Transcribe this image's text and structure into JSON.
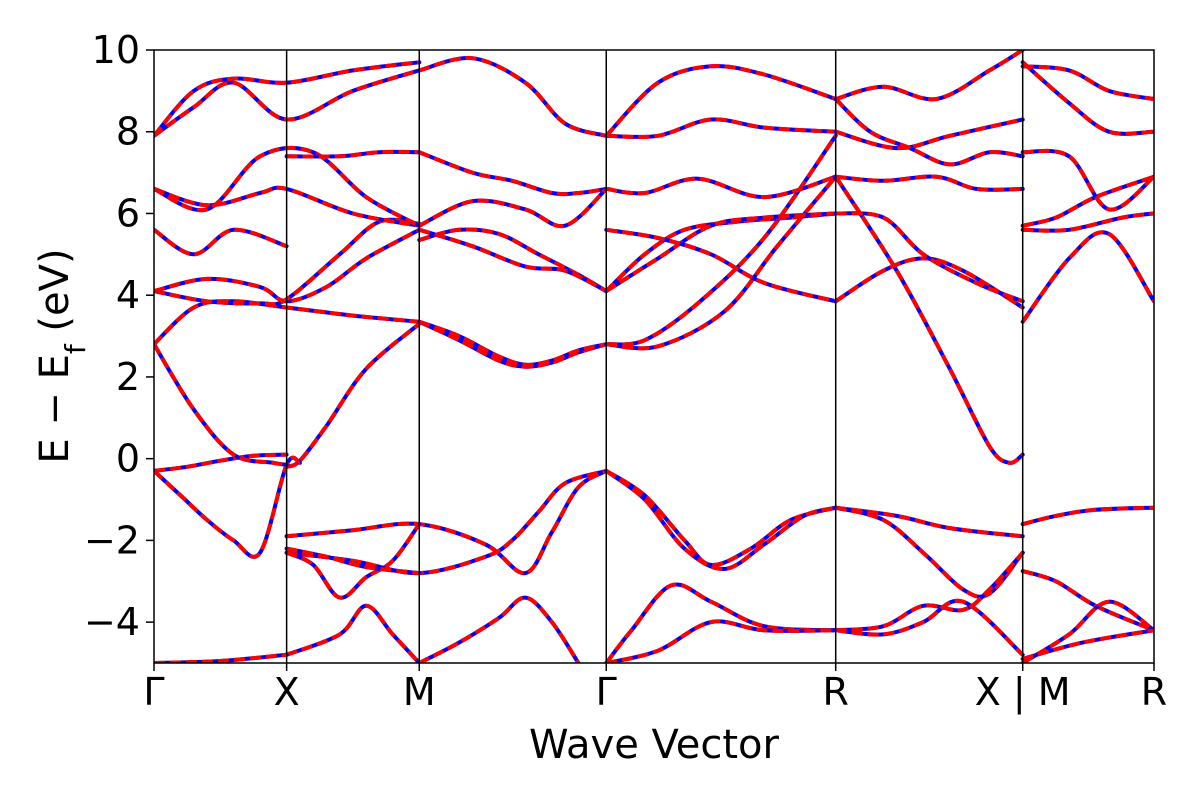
{
  "chart_data": {
    "type": "line",
    "title": "",
    "xlabel": "Wave Vector",
    "ylabel": "E − E_f (eV)",
    "ylabel_parts": {
      "main": "E − E",
      "sub": "f",
      "unit": " (eV)"
    },
    "ylim": [
      -5,
      10
    ],
    "yticks": [
      -4,
      -2,
      0,
      2,
      4,
      6,
      8,
      10
    ],
    "ytick_labels": [
      "−4",
      "−2",
      "0",
      "2",
      "4",
      "6",
      "8",
      "10"
    ],
    "xlim": [
      0,
      7.54
    ],
    "kpoints": [
      {
        "label": "Γ",
        "x": 0.0
      },
      {
        "label": "X",
        "x": 1.0
      },
      {
        "label": "M",
        "x": 2.0
      },
      {
        "label": "Γ",
        "x": 3.41
      },
      {
        "label": "R",
        "x": 5.14
      },
      {
        "label": "X | M",
        "x": 6.55
      },
      {
        "label": "R",
        "x": 7.54
      }
    ],
    "grid": false,
    "legend": "none",
    "colors": {
      "primary": "#ff0000",
      "overlay": "#0000ff",
      "vlines": "#000000"
    },
    "series": [
      {
        "x": [
          0,
          0.25,
          0.5,
          0.75,
          1.0
        ],
        "y": [
          -0.3,
          -0.2,
          -0.05,
          0.07,
          0.1
        ]
      },
      {
        "x": [
          1.0,
          1.1,
          1.3,
          1.6,
          2.0
        ],
        "y": [
          -0.2,
          -0.05,
          0.8,
          2.2,
          3.3
        ]
      },
      {
        "x": [
          0,
          0.2,
          0.4,
          0.6,
          0.8,
          1.0,
          1.1
        ],
        "y": [
          -0.3,
          -0.9,
          -1.5,
          -2.0,
          -2.3,
          -0.15,
          -0.1
        ]
      },
      {
        "x": [
          0,
          0.3,
          0.6,
          0.9,
          1.0
        ],
        "y": [
          2.8,
          1.2,
          0.1,
          -0.1,
          -0.15
        ]
      },
      {
        "x": [
          0,
          0.3,
          0.6,
          1.0,
          1.5,
          2.0
        ],
        "y": [
          2.8,
          3.7,
          3.85,
          3.7,
          3.5,
          3.35
        ]
      },
      {
        "x": [
          2.0,
          2.3,
          2.6,
          2.8,
          3.0,
          3.2,
          3.41
        ],
        "y": [
          3.35,
          2.9,
          2.4,
          2.25,
          2.35,
          2.6,
          2.8
        ]
      },
      {
        "x": [
          2.0,
          2.3,
          2.6,
          2.8,
          3.0,
          3.2,
          3.41
        ],
        "y": [
          3.35,
          3.0,
          2.5,
          2.3,
          2.4,
          2.65,
          2.8
        ]
      },
      {
        "x": [
          3.41,
          3.8,
          4.3,
          4.7,
          5.14
        ],
        "y": [
          2.8,
          2.75,
          3.6,
          5.2,
          6.9
        ]
      },
      {
        "x": [
          3.41,
          3.7,
          4.1,
          4.6,
          5.14
        ],
        "y": [
          2.8,
          2.9,
          3.8,
          5.4,
          7.9
        ]
      },
      {
        "x": [
          5.14,
          5.6,
          6.0,
          6.3,
          6.45,
          6.55
        ],
        "y": [
          6.9,
          4.6,
          2.2,
          0.3,
          -0.1,
          0.1
        ]
      },
      {
        "x": [
          1.0,
          1.5,
          2.0,
          2.5,
          2.8,
          3.0,
          3.2,
          3.41
        ],
        "y": [
          -1.9,
          -1.75,
          -1.6,
          -2.1,
          -2.8,
          -1.8,
          -0.7,
          -0.3
        ]
      },
      {
        "x": [
          1.0,
          1.5,
          2.0,
          2.5,
          2.7,
          2.9,
          3.1,
          3.41
        ],
        "y": [
          -2.3,
          -2.5,
          -2.8,
          -2.4,
          -2.0,
          -1.3,
          -0.6,
          -0.3
        ]
      },
      {
        "x": [
          1.0,
          1.2,
          1.4,
          1.6,
          1.8,
          2.0
        ],
        "y": [
          -2.3,
          -2.6,
          -3.4,
          -2.9,
          -2.5,
          -1.6
        ]
      },
      {
        "x": [
          1.0,
          1.3,
          1.6,
          2.0
        ],
        "y": [
          -2.2,
          -2.4,
          -2.65,
          -2.8
        ]
      },
      {
        "x": [
          3.41,
          3.7,
          4.0,
          4.2,
          4.5,
          4.8,
          5.14
        ],
        "y": [
          -0.3,
          -0.9,
          -2.0,
          -2.6,
          -2.2,
          -1.5,
          -1.2
        ]
      },
      {
        "x": [
          3.41,
          3.7,
          4.0,
          4.3,
          4.6,
          4.9,
          5.14
        ],
        "y": [
          -0.3,
          -1.0,
          -2.2,
          -2.7,
          -2.1,
          -1.4,
          -1.2
        ]
      },
      {
        "x": [
          5.14,
          5.5,
          5.8,
          6.1,
          6.3,
          6.55
        ],
        "y": [
          -1.2,
          -1.5,
          -2.3,
          -3.2,
          -3.3,
          -2.3
        ]
      },
      {
        "x": [
          5.14,
          5.6,
          6.0,
          6.55
        ],
        "y": [
          -1.2,
          -1.4,
          -1.7,
          -1.9
        ]
      },
      {
        "x": [
          3.41,
          3.6,
          3.9,
          4.2,
          4.6,
          5.14
        ],
        "y": [
          -5.0,
          -4.2,
          -3.1,
          -3.5,
          -4.1,
          -4.2
        ]
      },
      {
        "x": [
          3.41,
          3.8,
          4.2,
          4.6,
          5.14
        ],
        "y": [
          -5.0,
          -4.7,
          -4.0,
          -4.2,
          -4.2
        ]
      },
      {
        "x": [
          5.14,
          5.5,
          5.8,
          6.1,
          6.3,
          6.55
        ],
        "y": [
          -4.2,
          -4.1,
          -3.6,
          -3.7,
          -3.2,
          -2.3
        ]
      },
      {
        "x": [
          5.14,
          5.5,
          5.8,
          6.1,
          6.55
        ],
        "y": [
          -4.2,
          -4.3,
          -4.0,
          -3.5,
          -4.8
        ]
      },
      {
        "x": [
          1.0,
          1.4,
          1.6,
          1.8,
          2.0
        ],
        "y": [
          -4.8,
          -4.3,
          -3.6,
          -4.3,
          -5.0
        ]
      },
      {
        "x": [
          2.0,
          2.3,
          2.6,
          2.8,
          3.0,
          3.2
        ],
        "y": [
          -5.0,
          -4.5,
          -3.9,
          -3.4,
          -4.0,
          -5.0
        ]
      },
      {
        "x": [
          0,
          0.5,
          1.0
        ],
        "y": [
          -5.0,
          -4.95,
          -4.8
        ]
      },
      {
        "x": [
          6.55,
          6.8,
          7.1,
          7.54
        ],
        "y": [
          -1.6,
          -1.4,
          -1.25,
          -1.2
        ]
      },
      {
        "x": [
          6.55,
          6.8,
          7.1,
          7.54
        ],
        "y": [
          -2.75,
          -3.0,
          -3.6,
          -4.2
        ]
      },
      {
        "x": [
          6.55,
          6.9,
          7.2,
          7.54
        ],
        "y": [
          -5.0,
          -4.3,
          -3.5,
          -4.2
        ]
      },
      {
        "x": [
          6.55,
          7.0,
          7.54
        ],
        "y": [
          -4.9,
          -4.5,
          -4.2
        ]
      },
      {
        "x": [
          0,
          0.4,
          0.8,
          1.0,
          1.3,
          1.6,
          2.0
        ],
        "y": [
          4.1,
          4.4,
          4.2,
          3.85,
          4.2,
          4.9,
          5.6
        ]
      },
      {
        "x": [
          0,
          0.4,
          0.8,
          1.0,
          1.4,
          1.7,
          2.0
        ],
        "y": [
          4.1,
          3.85,
          3.8,
          3.9,
          5.0,
          5.8,
          5.75
        ]
      },
      {
        "x": [
          2.0,
          2.3,
          2.6,
          2.9,
          3.2,
          3.41
        ],
        "y": [
          5.35,
          5.6,
          5.5,
          5.0,
          4.5,
          4.1
        ]
      },
      {
        "x": [
          2.0,
          2.4,
          2.8,
          3.1,
          3.41
        ],
        "y": [
          5.6,
          5.2,
          4.7,
          4.6,
          4.1
        ]
      },
      {
        "x": [
          3.41,
          3.7,
          4.0,
          4.4,
          4.8,
          5.14
        ],
        "y": [
          4.1,
          5.0,
          5.6,
          5.8,
          5.9,
          6.0
        ]
      },
      {
        "x": [
          3.41,
          3.8,
          4.2,
          4.6,
          5.14
        ],
        "y": [
          4.1,
          4.9,
          5.7,
          5.9,
          6.0
        ]
      },
      {
        "x": [
          3.41,
          3.8,
          4.2,
          4.6,
          5.14
        ],
        "y": [
          5.6,
          5.4,
          5.0,
          4.3,
          3.85
        ]
      },
      {
        "x": [
          5.14,
          5.5,
          5.8,
          6.1,
          6.55
        ],
        "y": [
          3.85,
          4.6,
          4.9,
          4.6,
          3.7
        ]
      },
      {
        "x": [
          5.14,
          5.5,
          5.8,
          6.2,
          6.55
        ],
        "y": [
          6.0,
          5.9,
          5.0,
          4.3,
          3.85
        ]
      },
      {
        "x": [
          0,
          0.3,
          0.6,
          1.0
        ],
        "y": [
          5.6,
          5.0,
          5.6,
          5.2
        ]
      },
      {
        "x": [
          0,
          0.4,
          0.8,
          1.0,
          1.5,
          2.0
        ],
        "y": [
          6.6,
          6.2,
          6.5,
          6.6,
          6.0,
          5.7
        ]
      },
      {
        "x": [
          0,
          0.4,
          0.8,
          1.2,
          1.6,
          2.0
        ],
        "y": [
          6.6,
          6.1,
          7.4,
          7.5,
          6.4,
          5.7
        ]
      },
      {
        "x": [
          1.0,
          1.4,
          1.7,
          2.0
        ],
        "y": [
          7.4,
          7.4,
          7.5,
          7.5
        ]
      },
      {
        "x": [
          2.0,
          2.4,
          2.7,
          3.0,
          3.2,
          3.41
        ],
        "y": [
          7.5,
          7.0,
          6.8,
          6.5,
          6.5,
          6.6
        ]
      },
      {
        "x": [
          2.0,
          2.4,
          2.8,
          3.1,
          3.41
        ],
        "y": [
          5.7,
          6.3,
          6.1,
          5.7,
          6.6
        ]
      },
      {
        "x": [
          3.41,
          3.7,
          4.1,
          4.6,
          5.14
        ],
        "y": [
          6.6,
          6.5,
          6.85,
          6.4,
          6.9
        ]
      },
      {
        "x": [
          3.41,
          3.8,
          4.2,
          4.6,
          5.14
        ],
        "y": [
          7.9,
          7.9,
          8.3,
          8.1,
          8.0
        ]
      },
      {
        "x": [
          5.14,
          5.5,
          5.9,
          6.2,
          6.55
        ],
        "y": [
          6.9,
          6.8,
          6.9,
          6.6,
          6.6
        ]
      },
      {
        "x": [
          5.14,
          5.6,
          6.0,
          6.55
        ],
        "y": [
          8.0,
          7.6,
          7.9,
          8.3
        ]
      },
      {
        "x": [
          5.14,
          5.4,
          5.7,
          6.0,
          6.3,
          6.55
        ],
        "y": [
          8.8,
          8.0,
          7.6,
          7.2,
          7.5,
          7.4
        ]
      },
      {
        "x": [
          0,
          0.3,
          0.6,
          1.0,
          1.5,
          2.0
        ],
        "y": [
          7.9,
          8.6,
          9.2,
          8.3,
          9.0,
          9.5
        ]
      },
      {
        "x": [
          0,
          0.3,
          0.6,
          1.0,
          1.5,
          2.0
        ],
        "y": [
          7.9,
          9.0,
          9.3,
          9.2,
          9.5,
          9.7
        ]
      },
      {
        "x": [
          2.0,
          2.4,
          2.8,
          3.1,
          3.41
        ],
        "y": [
          9.5,
          9.8,
          9.2,
          8.2,
          7.9
        ]
      },
      {
        "x": [
          3.41,
          3.8,
          4.2,
          4.6,
          5.14
        ],
        "y": [
          7.9,
          9.2,
          9.6,
          9.4,
          8.8
        ]
      },
      {
        "x": [
          5.14,
          5.5,
          5.9,
          6.3,
          6.55
        ],
        "y": [
          8.8,
          9.1,
          8.8,
          9.5,
          10.0
        ]
      },
      {
        "x": [
          6.55,
          6.9,
          7.2,
          7.54
        ],
        "y": [
          3.35,
          4.9,
          5.5,
          3.85
        ]
      },
      {
        "x": [
          6.55,
          6.9,
          7.3,
          7.54
        ],
        "y": [
          5.6,
          5.6,
          5.9,
          6.0
        ]
      },
      {
        "x": [
          6.55,
          6.8,
          7.1,
          7.54
        ],
        "y": [
          5.7,
          5.9,
          6.4,
          6.9
        ]
      },
      {
        "x": [
          6.55,
          6.9,
          7.2,
          7.54
        ],
        "y": [
          7.5,
          7.4,
          6.1,
          6.9
        ]
      },
      {
        "x": [
          6.55,
          6.9,
          7.2,
          7.54
        ],
        "y": [
          9.6,
          9.5,
          9.0,
          8.8
        ]
      },
      {
        "x": [
          6.55,
          6.9,
          7.2,
          7.54
        ],
        "y": [
          9.7,
          8.7,
          8.0,
          8.0
        ]
      }
    ]
  }
}
